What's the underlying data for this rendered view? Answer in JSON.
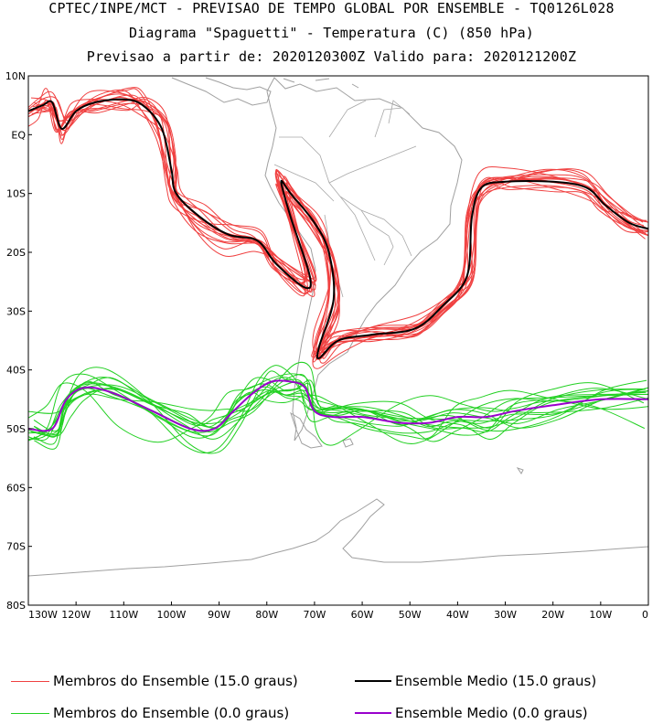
{
  "titles": {
    "line1": "CPTEC/INPE/MCT - PREVISAO DE TEMPO GLOBAL POR ENSEMBLE - TQ0126L028",
    "line2": "Diagrama \"Spaguetti\" - Temperatura (C) (850 hPa)",
    "line3": "Previsao a partir de: 2020120300Z  Valido para: 2020121200Z"
  },
  "axes": {
    "lat_labels": [
      "10N",
      "EQ",
      "10S",
      "20S",
      "30S",
      "40S",
      "50S",
      "60S",
      "70S",
      "80S"
    ],
    "lon_labels": [
      "130W",
      "120W",
      "110W",
      "100W",
      "90W",
      "80W",
      "70W",
      "60W",
      "50W",
      "40W",
      "30W",
      "20W",
      "10W",
      "0"
    ]
  },
  "colors": {
    "members_15": "#f04040",
    "mean_15": "#000000",
    "members_0": "#22d022",
    "mean_0": "#9900cc",
    "coast": "#a0a0a0",
    "border": "#a8a8a8"
  },
  "legend": {
    "members_15_label": "Membros do Ensemble (15.0 graus)",
    "mean_15_label": "Ensemble Medio (15.0 graus)",
    "members_0_label": "Membros do Ensemble (0.0 graus)",
    "mean_0_label": "Ensemble Medio (0.0 graus)"
  },
  "chart_data": {
    "type": "map",
    "projection": "lat-lon",
    "lon_range": [
      -130,
      0
    ],
    "lat_range": [
      -80,
      10
    ],
    "contour_levels_C": [
      15.0,
      0.0
    ],
    "ensemble_member_count": 15,
    "mean_15": [
      [
        -130,
        4
      ],
      [
        -127,
        5
      ],
      [
        -125,
        5.5
      ],
      [
        -123,
        1
      ],
      [
        -120,
        4
      ],
      [
        -116,
        5.5
      ],
      [
        -110,
        6
      ],
      [
        -106,
        5
      ],
      [
        -102,
        1
      ],
      [
        -100,
        -6
      ],
      [
        -99,
        -10
      ],
      [
        -94,
        -14
      ],
      [
        -88,
        -17
      ],
      [
        -82,
        -18
      ],
      [
        -78,
        -22
      ],
      [
        -72,
        -26
      ],
      [
        -71,
        -24
      ],
      [
        -75,
        -14
      ],
      [
        -77,
        -8
      ],
      [
        -75,
        -10
      ],
      [
        -70,
        -15
      ],
      [
        -67,
        -20
      ],
      [
        -66,
        -28
      ],
      [
        -69,
        -36
      ],
      [
        -69,
        -38
      ],
      [
        -65,
        -35
      ],
      [
        -58,
        -34
      ],
      [
        -49,
        -33
      ],
      [
        -43,
        -29
      ],
      [
        -38,
        -24
      ],
      [
        -37,
        -14
      ],
      [
        -35,
        -9
      ],
      [
        -30,
        -8
      ],
      [
        -20,
        -8
      ],
      [
        -13,
        -9
      ],
      [
        -9,
        -12
      ],
      [
        -4,
        -15
      ],
      [
        0,
        -16
      ]
    ],
    "mean_0": [
      [
        -130,
        -50
      ],
      [
        -125,
        -50
      ],
      [
        -122,
        -45
      ],
      [
        -118,
        -43
      ],
      [
        -112,
        -44
      ],
      [
        -104,
        -47
      ],
      [
        -96,
        -50
      ],
      [
        -91,
        -50
      ],
      [
        -87,
        -47
      ],
      [
        -83,
        -44
      ],
      [
        -79,
        -42
      ],
      [
        -75,
        -42
      ],
      [
        -72,
        -43
      ],
      [
        -70,
        -47
      ],
      [
        -66,
        -48
      ],
      [
        -60,
        -48
      ],
      [
        -52,
        -49
      ],
      [
        -46,
        -49
      ],
      [
        -40,
        -48
      ],
      [
        -34,
        -48
      ],
      [
        -28,
        -47
      ],
      [
        -20,
        -46
      ],
      [
        -10,
        -45
      ],
      [
        0,
        -45
      ]
    ]
  }
}
